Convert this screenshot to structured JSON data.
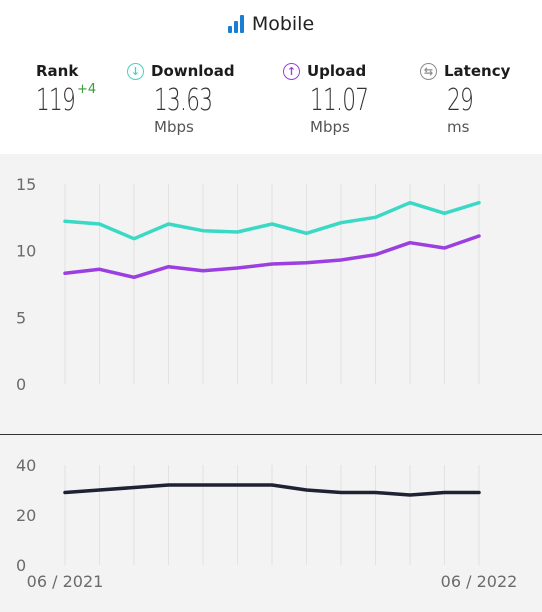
{
  "header": {
    "title": "Mobile",
    "icon": "signal-bars-icon"
  },
  "metrics": {
    "rank": {
      "label": "Rank",
      "value": "119",
      "change": "+4"
    },
    "download": {
      "label": "Download",
      "value": "13.63",
      "unit": "Mbps",
      "color": "#3ad9c5",
      "icon": "download-arrow-icon"
    },
    "upload": {
      "label": "Upload",
      "value": "11.07",
      "unit": "Mbps",
      "color": "#9b3fe0",
      "icon": "upload-arrow-icon"
    },
    "latency": {
      "label": "Latency",
      "value": "29",
      "unit": "ms",
      "color": "#8a8a8a",
      "icon": "latency-icon"
    }
  },
  "chart_data": [
    {
      "type": "line",
      "ylim": [
        0,
        15
      ],
      "y_ticks": [
        "15",
        "10",
        "5",
        "0"
      ],
      "grid": true,
      "series": [
        {
          "name": "Download",
          "color": "#3ad9c5",
          "values": [
            12.2,
            12.0,
            10.9,
            12.0,
            11.5,
            11.4,
            12.0,
            11.3,
            12.1,
            12.5,
            13.6,
            12.8,
            13.6
          ]
        },
        {
          "name": "Upload",
          "color": "#9b3fe0",
          "values": [
            8.3,
            8.6,
            8.0,
            8.8,
            8.5,
            8.7,
            9.0,
            9.1,
            9.3,
            9.7,
            10.6,
            10.2,
            11.1
          ]
        }
      ]
    },
    {
      "type": "line",
      "ylim": [
        0,
        40
      ],
      "y_ticks": [
        "40",
        "20",
        "0"
      ],
      "x_ticks": [
        "06 / 2021",
        "06 / 2022"
      ],
      "grid": true,
      "series": [
        {
          "name": "Latency",
          "color": "#1e2233",
          "values": [
            29,
            30,
            31,
            32,
            32,
            32,
            32,
            30,
            29,
            29,
            28,
            29,
            29
          ]
        }
      ]
    }
  ]
}
